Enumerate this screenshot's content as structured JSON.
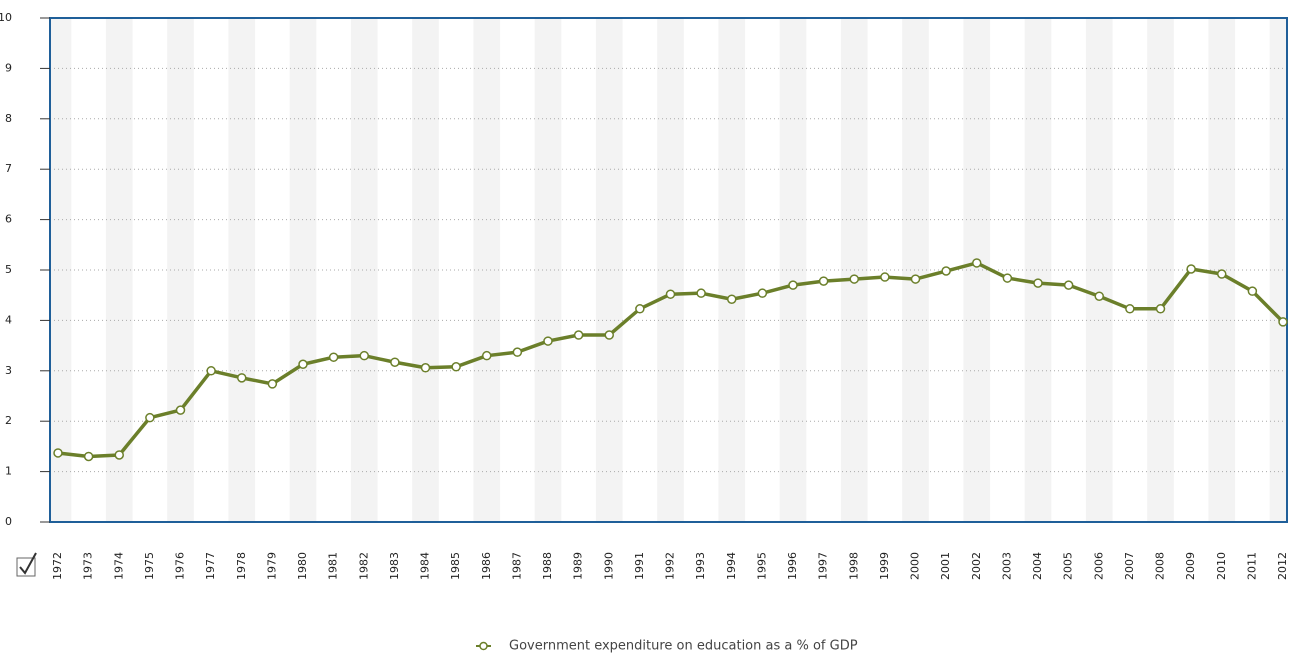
{
  "chart_data": {
    "type": "line",
    "categories": [
      "1972",
      "1973",
      "1974",
      "1975",
      "1976",
      "1977",
      "1978",
      "1979",
      "1980",
      "1981",
      "1982",
      "1983",
      "1984",
      "1985",
      "1986",
      "1987",
      "1988",
      "1989",
      "1990",
      "1991",
      "1992",
      "1993",
      "1994",
      "1995",
      "1996",
      "1997",
      "1998",
      "1999",
      "2000",
      "2001",
      "2002",
      "2003",
      "2004",
      "2005",
      "2006",
      "2007",
      "2008",
      "2009",
      "2010",
      "2011",
      "2012"
    ],
    "series": [
      {
        "name": "Government expenditure on education as a % of GDP",
        "color": "#6b7f2a",
        "values": [
          1.37,
          1.3,
          1.33,
          2.07,
          2.22,
          3.0,
          2.86,
          2.74,
          3.13,
          3.27,
          3.3,
          3.17,
          3.06,
          3.08,
          3.3,
          3.37,
          3.59,
          3.71,
          3.71,
          4.23,
          4.52,
          4.54,
          4.42,
          4.54,
          4.7,
          4.78,
          4.82,
          4.86,
          4.82,
          4.98,
          5.14,
          4.84,
          4.74,
          4.7,
          4.48,
          4.23,
          4.23,
          5.02,
          4.92,
          4.58,
          3.97
        ]
      }
    ],
    "ylim": [
      0,
      10
    ],
    "yticks": [
      0,
      1,
      2,
      3,
      4,
      5,
      6,
      7,
      8,
      9,
      10
    ],
    "grid": true,
    "legend": "bottom"
  }
}
